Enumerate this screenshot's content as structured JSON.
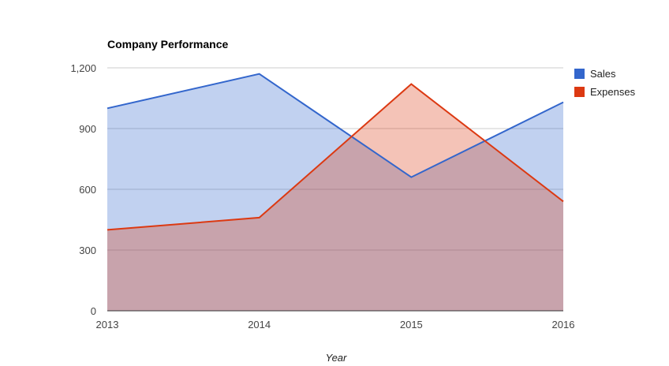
{
  "chart_data": {
    "type": "area",
    "title": "Company Performance",
    "xlabel": "Year",
    "ylabel": "",
    "categories": [
      "2013",
      "2014",
      "2015",
      "2016"
    ],
    "ylim": [
      0,
      1200
    ],
    "yticks": [
      0,
      300,
      600,
      900,
      1200
    ],
    "ytick_labels": [
      "0",
      "300",
      "600",
      "900",
      "1,200"
    ],
    "grid": true,
    "legend_position": "right",
    "series": [
      {
        "name": "Sales",
        "color": "#3366cc",
        "values": [
          1000,
          1170,
          660,
          1030
        ]
      },
      {
        "name": "Expenses",
        "color": "#dc3912",
        "values": [
          400,
          460,
          1120,
          540
        ]
      }
    ]
  }
}
